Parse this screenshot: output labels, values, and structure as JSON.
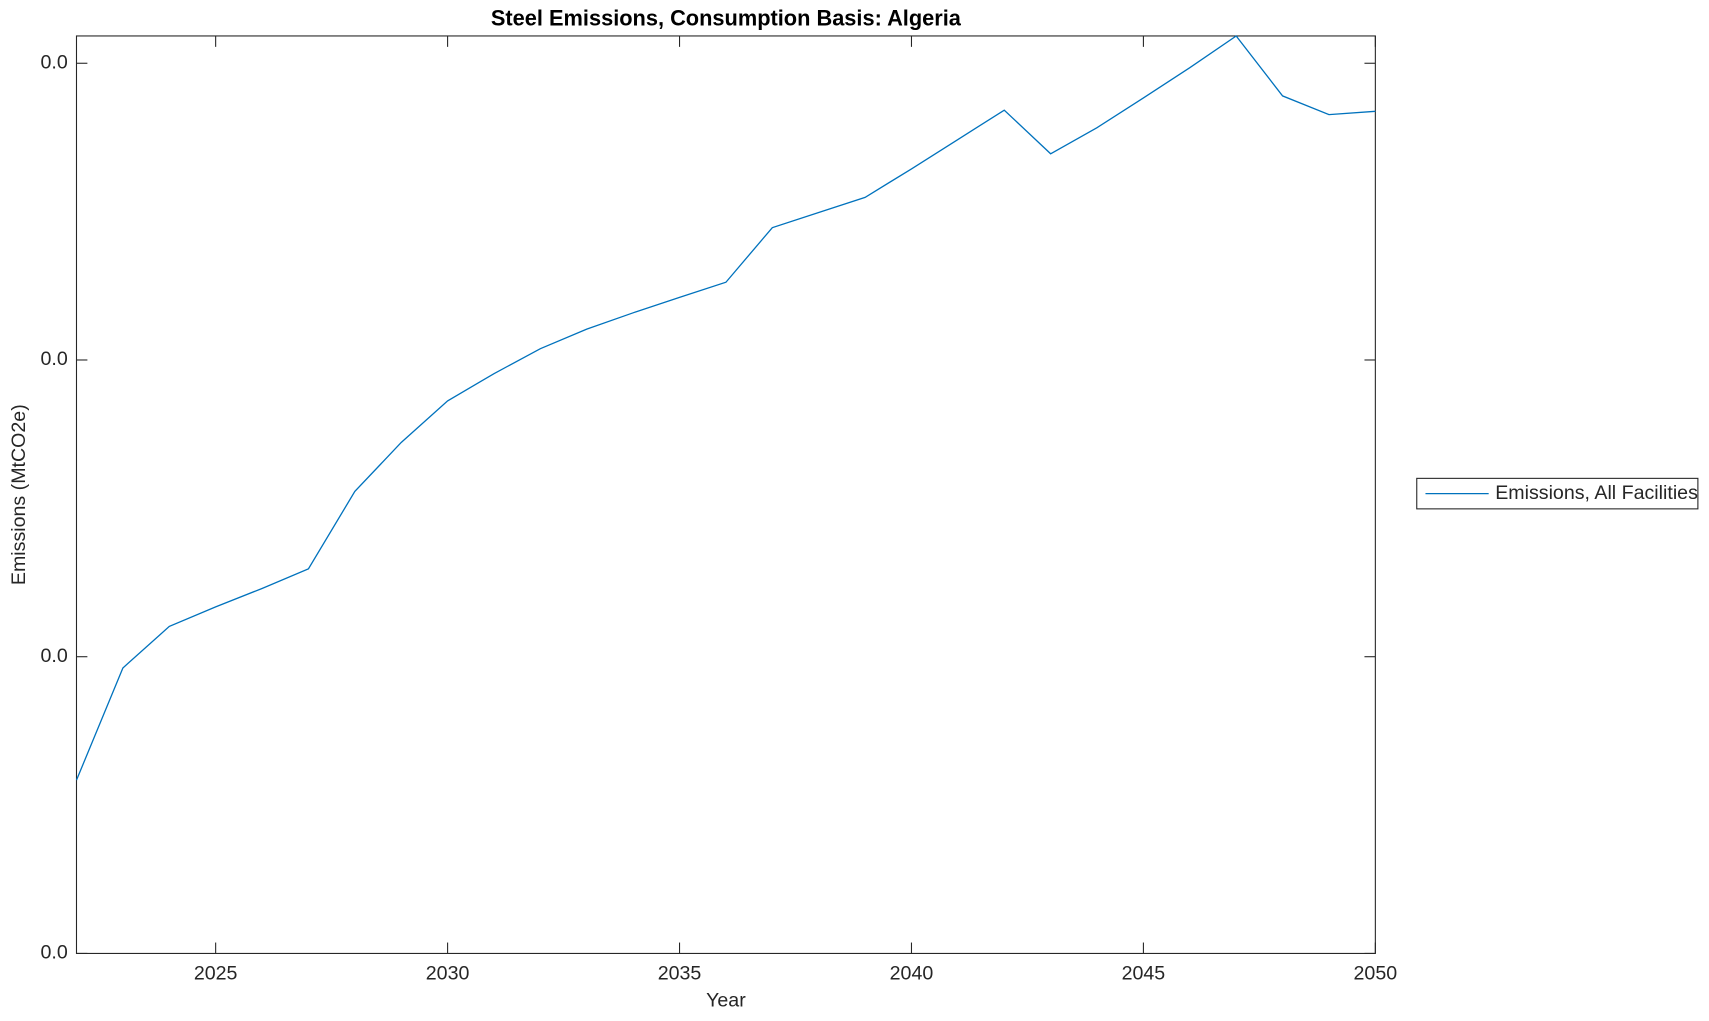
{
  "chart_data": {
    "type": "line",
    "title": "Steel Emissions, Consumption Basis: Algeria",
    "xlabel": "Year",
    "ylabel": "Emissions (MtCO2e)",
    "x": [
      2022,
      2023,
      2024,
      2025,
      2026,
      2027,
      2028,
      2029,
      2030,
      2031,
      2032,
      2033,
      2034,
      2035,
      2036,
      2037,
      2038,
      2039,
      2040,
      2041,
      2042,
      2043,
      2044,
      2045,
      2046,
      2047,
      2048,
      2049,
      2050
    ],
    "series": [
      {
        "name": "Emissions, All Facilities",
        "color": "#0072bd",
        "values": [
          0.00584,
          0.00962,
          0.01102,
          0.01168,
          0.0123,
          0.01296,
          0.01557,
          0.01722,
          0.01862,
          0.01954,
          0.02038,
          0.02104,
          0.02159,
          0.02211,
          0.02262,
          0.02446,
          0.02497,
          0.02548,
          0.02644,
          0.02743,
          0.02842,
          0.02695,
          0.02783,
          0.02883,
          0.02985,
          0.03092,
          0.0289,
          0.02827,
          0.02838
        ]
      }
    ],
    "xlim": [
      2022,
      2050
    ],
    "xticks": [
      2025,
      2030,
      2035,
      2040,
      2045,
      2050
    ],
    "ylim": [
      0,
      0.03092
    ],
    "yticks": [
      {
        "value": 0,
        "label": "0.0"
      },
      {
        "value": 0.01,
        "label": "0.0"
      },
      {
        "value": 0.02,
        "label": "0.0"
      },
      {
        "value": 0.03,
        "label": "0.0"
      }
    ],
    "legend": "outside-right",
    "grid": false
  }
}
